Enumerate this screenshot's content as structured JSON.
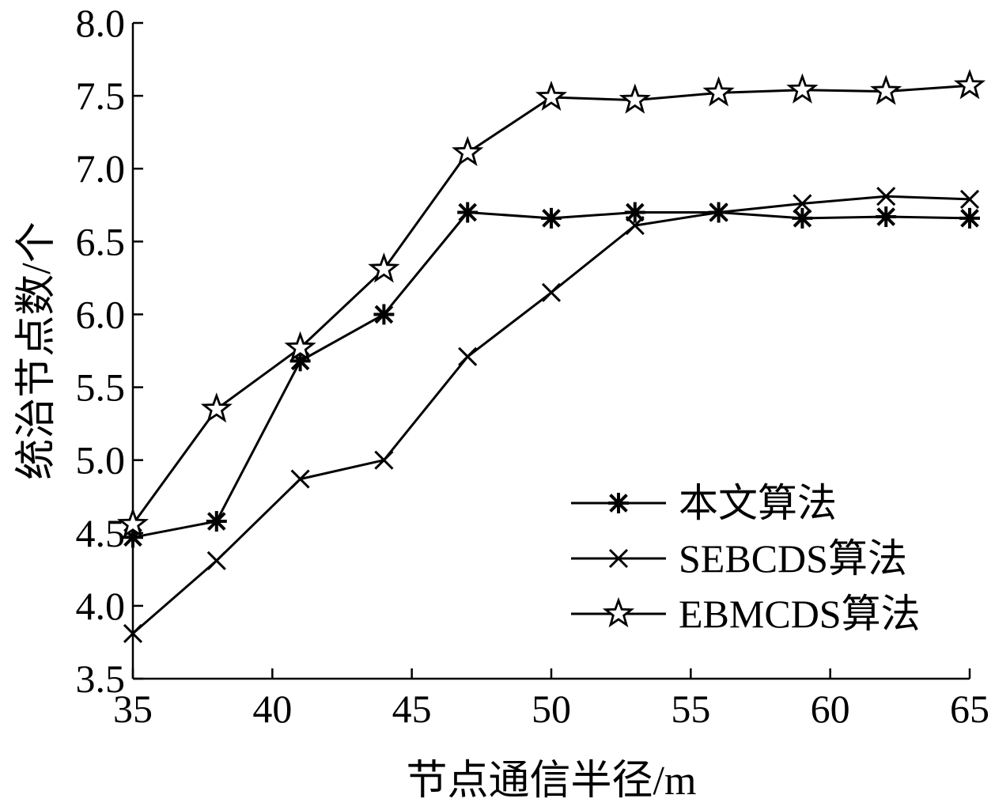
{
  "chart_data": {
    "type": "line",
    "xlabel": "节点通信半径/m",
    "ylabel": "统治节点数/个",
    "xlim": [
      35,
      65
    ],
    "ylim": [
      3.5,
      8.0
    ],
    "xticks": [
      "35",
      "40",
      "45",
      "50",
      "55",
      "60",
      "65"
    ],
    "yticks": [
      "3.5",
      "4.0",
      "4.5",
      "5.0",
      "5.5",
      "6.0",
      "6.5",
      "7.0",
      "7.5",
      "8.0"
    ],
    "grid": false,
    "legend_position": "bottom-right",
    "x": [
      35,
      38,
      41,
      44,
      47,
      50,
      53,
      56,
      59,
      62,
      65
    ],
    "series": [
      {
        "name": "本文算法",
        "marker": "asterisk",
        "values": [
          4.47,
          4.58,
          5.68,
          6.0,
          6.7,
          6.66,
          6.7,
          6.7,
          6.66,
          6.67,
          6.66
        ]
      },
      {
        "name": "SEBCDS算法",
        "marker": "x",
        "values": [
          3.81,
          4.31,
          4.87,
          5.0,
          5.71,
          6.15,
          6.61,
          6.7,
          6.76,
          6.81,
          6.79
        ]
      },
      {
        "name": "EBMCDS算法",
        "marker": "star",
        "values": [
          4.56,
          5.35,
          5.77,
          6.31,
          7.11,
          7.49,
          7.47,
          7.52,
          7.54,
          7.53,
          7.57
        ]
      }
    ],
    "colors": {
      "line": "#000000",
      "marker_fill": "#ffffff",
      "axis": "#000000"
    }
  }
}
